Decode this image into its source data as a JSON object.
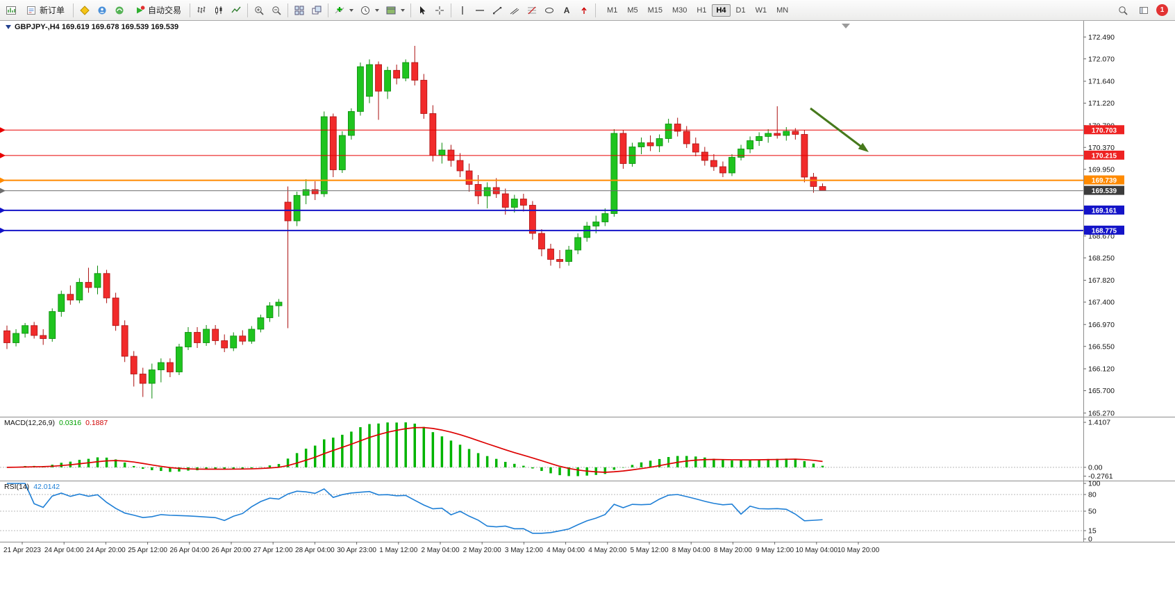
{
  "toolbar": {
    "new_order": "新订单",
    "auto_trading": "自动交易",
    "text_tool": "A",
    "timeframes": [
      "M1",
      "M5",
      "M15",
      "M30",
      "H1",
      "H4",
      "D1",
      "W1",
      "MN"
    ],
    "active_timeframe": "H4",
    "notification_count": "1"
  },
  "chart": {
    "title": "GBPJPY-,H4 169.619 169.678 169.539 169.539",
    "y_axis_labels": [
      "172.490",
      "172.070",
      "171.640",
      "171.220",
      "170.790",
      "170.370",
      "169.950",
      "168.670",
      "168.250",
      "167.820",
      "167.400",
      "166.970",
      "166.550",
      "166.120",
      "165.700",
      "165.270"
    ],
    "x_axis_labels": [
      "21 Apr 2023",
      "24 Apr 04:00",
      "24 Apr 20:00",
      "25 Apr 12:00",
      "26 Apr 04:00",
      "26 Apr 20:00",
      "27 Apr 12:00",
      "28 Apr 04:00",
      "30 Apr 23:00",
      "1 May 12:00",
      "2 May 04:00",
      "2 May 20:00",
      "3 May 12:00",
      "4 May 04:00",
      "4 May 20:00",
      "5 May 12:00",
      "8 May 04:00",
      "8 May 20:00",
      "9 May 12:00",
      "10 May 04:00",
      "10 May 20:00"
    ],
    "hlines": [
      {
        "value": "170.703",
        "color": "#e80000",
        "badge": "#ee2222",
        "width": 1
      },
      {
        "value": "170.215",
        "color": "#e80000",
        "badge": "#ee2222",
        "width": 1
      },
      {
        "value": "169.739",
        "color": "#ff8a00",
        "badge": "#ff8a00",
        "width": 2
      },
      {
        "value": "169.539",
        "color": "#6e6e6e",
        "badge": "#3c3c3c",
        "width": 1
      },
      {
        "value": "169.161",
        "color": "#1414c8",
        "badge": "#1414c8",
        "width": 2
      },
      {
        "value": "168.775",
        "color": "#1414c8",
        "badge": "#1414c8",
        "width": 2
      }
    ],
    "arrow_color": "#46791c"
  },
  "macd": {
    "name": "MACD(12,26,9)",
    "value_main": "0.0316",
    "value_signal": "0.1887",
    "scale_top": "1.4107",
    "scale_zero": "0.00",
    "scale_bottom": "-0.2761",
    "histogram_color": "#00b400",
    "signal_color": "#dd0000"
  },
  "rsi": {
    "name": "RSI(14)",
    "value": "42.0142",
    "levels": [
      "100",
      "80",
      "50",
      "15",
      "0"
    ],
    "line_color": "#1e7fd6"
  },
  "chart_data": {
    "type": "candlestick",
    "symbol": "GBPJPY-",
    "timeframe": "H4",
    "y_range": [
      165.2,
      172.8
    ],
    "up_color": "#1fc41f",
    "up_border": "#0b8a0b",
    "down_color": "#f12b2b",
    "down_border": "#aa0f0f",
    "open_high_low_close": [
      [
        166.85,
        166.95,
        166.5,
        166.62
      ],
      [
        166.62,
        166.88,
        166.55,
        166.8
      ],
      [
        166.8,
        167.0,
        166.72,
        166.95
      ],
      [
        166.95,
        167.02,
        166.7,
        166.76
      ],
      [
        166.76,
        166.88,
        166.58,
        166.7
      ],
      [
        166.7,
        167.28,
        166.64,
        167.22
      ],
      [
        167.22,
        167.62,
        167.12,
        167.55
      ],
      [
        167.55,
        167.72,
        167.35,
        167.44
      ],
      [
        167.44,
        167.86,
        167.38,
        167.78
      ],
      [
        167.78,
        168.06,
        167.58,
        167.68
      ],
      [
        167.68,
        168.1,
        167.55,
        167.95
      ],
      [
        167.95,
        168.02,
        167.38,
        167.48
      ],
      [
        167.48,
        167.58,
        166.85,
        166.95
      ],
      [
        166.95,
        167.05,
        166.25,
        166.36
      ],
      [
        166.36,
        166.46,
        165.78,
        166.02
      ],
      [
        166.02,
        166.14,
        165.58,
        165.84
      ],
      [
        165.84,
        166.22,
        165.55,
        166.1
      ],
      [
        166.1,
        166.32,
        165.86,
        166.24
      ],
      [
        166.24,
        166.32,
        165.96,
        166.06
      ],
      [
        166.06,
        166.6,
        166.0,
        166.54
      ],
      [
        166.54,
        166.92,
        166.48,
        166.82
      ],
      [
        166.82,
        166.92,
        166.52,
        166.62
      ],
      [
        166.62,
        166.96,
        166.56,
        166.88
      ],
      [
        166.88,
        166.96,
        166.58,
        166.66
      ],
      [
        166.66,
        166.78,
        166.44,
        166.52
      ],
      [
        166.52,
        166.82,
        166.46,
        166.75
      ],
      [
        166.75,
        166.86,
        166.58,
        166.65
      ],
      [
        166.65,
        166.94,
        166.6,
        166.88
      ],
      [
        166.88,
        167.16,
        166.82,
        167.1
      ],
      [
        167.1,
        167.4,
        167.02,
        167.33
      ],
      [
        167.33,
        167.46,
        167.12,
        167.4
      ],
      [
        169.32,
        169.62,
        166.9,
        168.96
      ],
      [
        168.96,
        169.52,
        168.86,
        169.45
      ],
      [
        169.45,
        169.76,
        169.28,
        169.56
      ],
      [
        169.56,
        169.72,
        169.36,
        169.48
      ],
      [
        169.48,
        171.06,
        169.42,
        170.96
      ],
      [
        170.96,
        171.02,
        169.8,
        169.94
      ],
      [
        169.94,
        170.68,
        169.88,
        170.6
      ],
      [
        170.6,
        171.12,
        170.52,
        171.06
      ],
      [
        171.06,
        172.0,
        170.98,
        171.92
      ],
      [
        171.35,
        172.06,
        171.22,
        171.96
      ],
      [
        171.96,
        172.02,
        170.9,
        171.45
      ],
      [
        171.45,
        171.92,
        171.3,
        171.85
      ],
      [
        171.85,
        171.96,
        171.58,
        171.7
      ],
      [
        171.7,
        172.06,
        171.64,
        172.0
      ],
      [
        172.0,
        172.32,
        171.56,
        171.66
      ],
      [
        171.66,
        171.78,
        170.92,
        171.02
      ],
      [
        171.02,
        171.18,
        170.1,
        170.22
      ],
      [
        170.22,
        170.46,
        170.06,
        170.32
      ],
      [
        170.32,
        170.42,
        170.0,
        170.12
      ],
      [
        170.12,
        170.26,
        169.8,
        169.92
      ],
      [
        169.92,
        170.06,
        169.52,
        169.66
      ],
      [
        169.66,
        169.84,
        169.28,
        169.44
      ],
      [
        169.44,
        169.7,
        169.2,
        169.6
      ],
      [
        169.6,
        169.78,
        169.4,
        169.48
      ],
      [
        169.48,
        169.58,
        169.08,
        169.22
      ],
      [
        169.22,
        169.46,
        169.12,
        169.38
      ],
      [
        169.38,
        169.48,
        169.14,
        169.26
      ],
      [
        169.26,
        169.34,
        168.6,
        168.72
      ],
      [
        168.72,
        168.8,
        168.28,
        168.42
      ],
      [
        168.42,
        168.52,
        168.1,
        168.22
      ],
      [
        168.22,
        168.4,
        168.05,
        168.18
      ],
      [
        168.18,
        168.48,
        168.1,
        168.4
      ],
      [
        168.4,
        168.72,
        168.32,
        168.64
      ],
      [
        168.64,
        168.94,
        168.56,
        168.86
      ],
      [
        168.86,
        169.06,
        168.72,
        168.94
      ],
      [
        168.94,
        169.2,
        168.86,
        169.1
      ],
      [
        169.1,
        170.72,
        169.04,
        170.64
      ],
      [
        170.64,
        170.7,
        169.96,
        170.06
      ],
      [
        170.06,
        170.46,
        170.0,
        170.38
      ],
      [
        170.38,
        170.56,
        170.24,
        170.46
      ],
      [
        170.46,
        170.6,
        170.3,
        170.4
      ],
      [
        170.4,
        170.62,
        170.28,
        170.54
      ],
      [
        170.54,
        170.92,
        170.46,
        170.82
      ],
      [
        170.82,
        170.94,
        170.58,
        170.68
      ],
      [
        170.68,
        170.78,
        170.36,
        170.44
      ],
      [
        170.44,
        170.56,
        170.2,
        170.28
      ],
      [
        170.28,
        170.38,
        170.02,
        170.12
      ],
      [
        170.12,
        170.24,
        169.92,
        170.0
      ],
      [
        170.0,
        170.1,
        169.8,
        169.88
      ],
      [
        169.88,
        170.24,
        169.82,
        170.18
      ],
      [
        170.18,
        170.42,
        170.12,
        170.34
      ],
      [
        170.34,
        170.58,
        170.26,
        170.5
      ],
      [
        170.5,
        170.66,
        170.4,
        170.58
      ],
      [
        170.58,
        170.72,
        170.46,
        170.64
      ],
      [
        170.64,
        171.16,
        170.54,
        170.6
      ],
      [
        170.6,
        170.76,
        170.5,
        170.68
      ],
      [
        170.68,
        170.74,
        170.52,
        170.62
      ],
      [
        170.62,
        170.7,
        169.7,
        169.8
      ],
      [
        169.8,
        169.88,
        169.5,
        169.62
      ],
      [
        169.619,
        169.678,
        169.539,
        169.539
      ]
    ]
  }
}
